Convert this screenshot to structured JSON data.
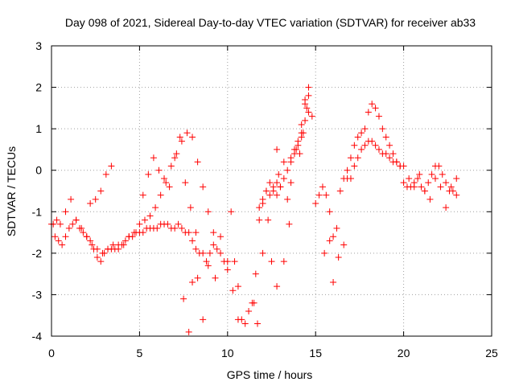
{
  "chart_data": {
    "type": "scatter",
    "title": "Day 098 of 2021, Sidereal Day-to-day VTEC variation (SDTVAR) for receiver ab33",
    "xlabel": "GPS time / hours",
    "ylabel": "SDTVAR / TECUs",
    "xlim": [
      0,
      25
    ],
    "ylim": [
      -4,
      3
    ],
    "x_ticks": [
      "0",
      "5",
      "10",
      "15",
      "20",
      "25"
    ],
    "y_ticks": [
      "-4",
      "-3",
      "-2",
      "-1",
      "0",
      "1",
      "2",
      "3"
    ],
    "grid": true,
    "marker": "+",
    "marker_color": "#ff0000",
    "series": [
      {
        "name": "SDTVAR",
        "x": [
          0.0,
          0.2,
          0.4,
          0.6,
          0.8,
          1.0,
          1.2,
          1.4,
          1.6,
          1.8,
          2.0,
          2.2,
          2.4,
          2.6,
          2.8,
          3.0,
          3.2,
          3.4,
          3.6,
          3.8,
          4.0,
          4.2,
          4.4,
          4.6,
          4.8,
          5.0,
          5.2,
          5.4,
          5.6,
          5.8,
          6.0,
          6.2,
          6.4,
          6.6,
          6.8,
          7.0,
          7.2,
          7.4,
          7.6,
          7.8,
          8.0,
          8.2,
          8.4,
          8.6,
          8.8,
          9.0,
          9.2,
          9.4,
          9.6,
          9.8,
          10.0,
          10.2,
          10.4,
          10.6,
          10.8,
          11.0,
          11.2,
          11.4,
          11.6,
          11.8,
          12.0,
          12.2,
          12.4,
          12.6,
          12.8,
          13.0,
          13.2,
          13.4,
          13.6,
          13.8,
          14.0,
          14.2,
          14.4,
          14.6,
          14.8,
          15.0,
          15.2,
          15.4,
          15.6,
          15.8,
          16.0,
          16.2,
          16.4,
          16.6,
          16.8,
          17.0,
          17.2,
          17.4,
          17.6,
          17.8,
          18.0,
          18.2,
          18.4,
          18.6,
          18.8,
          19.0,
          19.2,
          19.4,
          19.6,
          19.8,
          20.0,
          20.2,
          20.4,
          20.6,
          20.8,
          21.0,
          21.2,
          21.4,
          21.6,
          21.8,
          22.0,
          22.2,
          22.4,
          22.6,
          22.8,
          23.0,
          0.1,
          0.3,
          0.5,
          0.8,
          1.1,
          1.4,
          1.7,
          2.0,
          2.3,
          2.6,
          2.9,
          3.2,
          3.5,
          3.8,
          4.1,
          4.4,
          4.7,
          5.0,
          5.3,
          5.6,
          5.9,
          6.2,
          6.5,
          6.8,
          7.1,
          7.4,
          7.7,
          8.0,
          8.3,
          8.6,
          8.9,
          9.2,
          2.2,
          2.5,
          2.8,
          3.1,
          3.4,
          5.2,
          5.5,
          5.8,
          6.1,
          6.4,
          6.7,
          7.0,
          7.3,
          7.6,
          7.9,
          8.2,
          11.8,
          12.0,
          12.2,
          12.4,
          12.6,
          12.8,
          13.0,
          13.2,
          13.4,
          13.6,
          13.8,
          14.0,
          14.2,
          14.4,
          14.6,
          7.5,
          7.8,
          8.0,
          8.3,
          8.6,
          8.9,
          9.3,
          9.6,
          10.0,
          10.3,
          10.6,
          11.5,
          11.7,
          12.0,
          12.3,
          12.5,
          12.8,
          13.2,
          13.5,
          16.0,
          16.3,
          16.6,
          16.8,
          17.0,
          17.2,
          17.4,
          17.6,
          17.8,
          18.0,
          18.2,
          18.4,
          18.6,
          18.8,
          19.0,
          19.2,
          19.4,
          19.6,
          19.8,
          20.0,
          20.3,
          20.6,
          20.9,
          21.2,
          21.5,
          21.8,
          22.1,
          22.4,
          22.7,
          23.0,
          14.1,
          14.3,
          14.5,
          14.6,
          14.4,
          14.2,
          13.9,
          13.6,
          12.8,
          12.9,
          15.5,
          15.8
        ],
        "y": [
          -1.3,
          -1.6,
          -1.7,
          -1.8,
          -1.6,
          -1.4,
          -1.3,
          -1.2,
          -1.4,
          -1.5,
          -1.6,
          -1.7,
          -1.9,
          -2.1,
          -2.2,
          -2.0,
          -1.9,
          -1.9,
          -1.9,
          -1.8,
          -1.8,
          -1.7,
          -1.6,
          -1.6,
          -1.5,
          -1.5,
          -1.5,
          -1.4,
          -1.4,
          -1.4,
          -1.4,
          -1.3,
          -1.3,
          -1.3,
          -1.4,
          -1.4,
          -1.3,
          -1.4,
          -1.5,
          -1.5,
          -1.7,
          -1.9,
          -2.0,
          -2.0,
          -2.2,
          -2.0,
          -1.8,
          -1.9,
          -2.0,
          -2.2,
          -2.4,
          -1.0,
          -2.2,
          -2.8,
          -3.6,
          -3.7,
          -3.4,
          -3.2,
          -2.5,
          -1.2,
          -0.8,
          -0.5,
          -0.6,
          -0.5,
          -0.3,
          -0.4,
          -0.2,
          0.0,
          0.3,
          0.5,
          0.6,
          0.8,
          1.2,
          1.4,
          1.3,
          -0.8,
          -0.6,
          -0.4,
          -0.6,
          -1.0,
          -1.6,
          -1.4,
          -0.5,
          -0.2,
          0.0,
          0.3,
          0.6,
          0.8,
          0.9,
          1.0,
          1.4,
          1.6,
          1.5,
          1.3,
          1.0,
          0.8,
          0.6,
          0.4,
          0.2,
          0.1,
          -0.3,
          -0.4,
          -0.4,
          -0.3,
          -0.2,
          -0.4,
          -0.5,
          -0.3,
          -0.1,
          0.1,
          0.1,
          -0.1,
          -0.3,
          -0.5,
          -0.5,
          -0.6,
          -1.3,
          -1.2,
          -1.3,
          -1.0,
          -0.7,
          -1.2,
          -1.4,
          -1.6,
          -1.8,
          -1.9,
          -2.0,
          -1.9,
          -1.8,
          -1.9,
          -1.8,
          -1.6,
          -1.5,
          -1.3,
          -1.2,
          -1.1,
          -0.9,
          -0.6,
          -0.3,
          0.1,
          0.4,
          0.7,
          0.9,
          0.8,
          0.2,
          -0.4,
          -1.0,
          -1.5,
          -0.8,
          -0.7,
          -0.5,
          -0.1,
          0.1,
          -0.6,
          -0.1,
          0.3,
          0.0,
          -0.2,
          -0.4,
          0.3,
          0.8,
          -0.3,
          -0.9,
          -1.5,
          -0.9,
          -0.7,
          -0.5,
          -0.3,
          -0.4,
          -0.6,
          -0.4,
          0.2,
          -0.7,
          -0.3,
          0.4,
          0.7,
          0.9,
          1.6,
          2.0,
          -3.1,
          -3.9,
          -2.7,
          -2.6,
          -3.6,
          -2.3,
          -2.6,
          -1.6,
          -2.2,
          -2.9,
          -3.6,
          -3.2,
          -3.7,
          -2.0,
          -1.2,
          -2.2,
          -2.8,
          -2.2,
          -1.3,
          -2.7,
          -2.1,
          -1.8,
          -0.2,
          -0.2,
          0.1,
          0.3,
          0.5,
          0.6,
          0.7,
          0.7,
          0.6,
          0.5,
          0.4,
          0.4,
          0.3,
          0.2,
          0.2,
          0.1,
          0.1,
          -0.2,
          -0.4,
          -0.1,
          -0.5,
          -0.7,
          -0.2,
          -0.4,
          -0.9,
          -0.4,
          -0.2,
          0.4,
          0.9,
          1.5,
          1.8,
          1.7,
          1.1,
          0.5,
          0.2,
          0.5,
          -0.1,
          -2.0,
          -1.7
        ]
      }
    ]
  }
}
